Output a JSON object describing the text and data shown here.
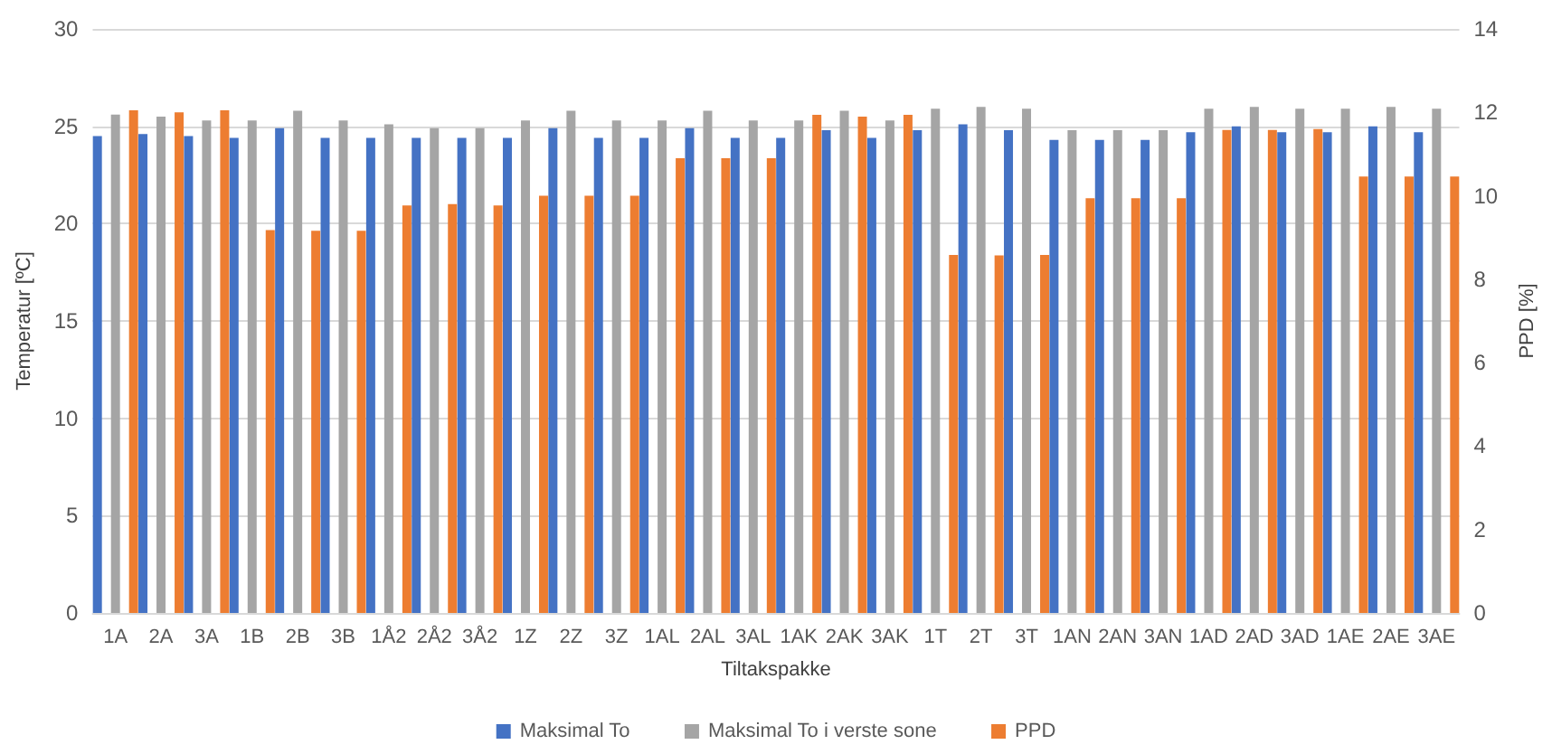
{
  "chart_data": {
    "type": "bar",
    "xlabel": "Tiltakspakke",
    "ylabel": "Temperatur [ºC]",
    "y2label": "PPD [%]",
    "categories": [
      "1A",
      "2A",
      "3A",
      "1B",
      "2B",
      "3B",
      "1Å2",
      "2Å2",
      "3Å2",
      "1Z",
      "2Z",
      "3Z",
      "1AL",
      "2AL",
      "3AL",
      "1AK",
      "2AK",
      "3AK",
      "1T",
      "2T",
      "3T",
      "1AN",
      "2AN",
      "3AN",
      "1AD",
      "2AD",
      "3AD",
      "1AE",
      "2AE",
      "3AE"
    ],
    "series": [
      {
        "name": "Maksimal To",
        "color": "#4472c4",
        "values": [
          24.5,
          24.6,
          24.5,
          24.4,
          24.9,
          24.4,
          24.4,
          24.4,
          24.4,
          24.4,
          24.9,
          24.4,
          24.4,
          24.9,
          24.4,
          24.4,
          24.8,
          24.4,
          24.8,
          25.1,
          24.8,
          24.3,
          24.3,
          24.3,
          24.7,
          25.0,
          24.7,
          24.7,
          25.0,
          24.7
        ]
      },
      {
        "name": "Maksimal To i verste sone",
        "color": "#a5a5a5",
        "values": [
          25.6,
          25.5,
          25.3,
          25.3,
          25.8,
          25.3,
          25.1,
          24.9,
          24.9,
          25.3,
          25.8,
          25.3,
          25.3,
          25.8,
          25.3,
          25.3,
          25.8,
          25.3,
          25.9,
          26.0,
          25.9,
          24.8,
          24.8,
          24.8,
          25.9,
          26.0,
          25.9,
          25.9,
          26.0,
          25.9
        ]
      },
      {
        "name": "PPD",
        "color": "#ed7d31",
        "axis": "y2",
        "values": [
          12.05,
          12.0,
          12.05,
          9.18,
          9.16,
          9.16,
          9.77,
          9.8,
          9.77,
          10.0,
          10.0,
          10.0,
          10.9,
          10.9,
          10.9,
          11.94,
          11.9,
          11.94,
          8.58,
          8.57,
          8.58,
          9.94,
          9.94,
          9.94,
          11.58,
          11.58,
          11.6,
          10.46,
          10.46,
          10.46
        ]
      }
    ],
    "ylim": [
      0,
      30
    ],
    "yticks": [
      0,
      5,
      10,
      15,
      20,
      25,
      30
    ],
    "y2lim": [
      0,
      14
    ],
    "y2ticks": [
      0,
      2,
      4,
      6,
      8,
      10,
      12,
      14
    ],
    "grid": "y",
    "legend": "bottom"
  }
}
